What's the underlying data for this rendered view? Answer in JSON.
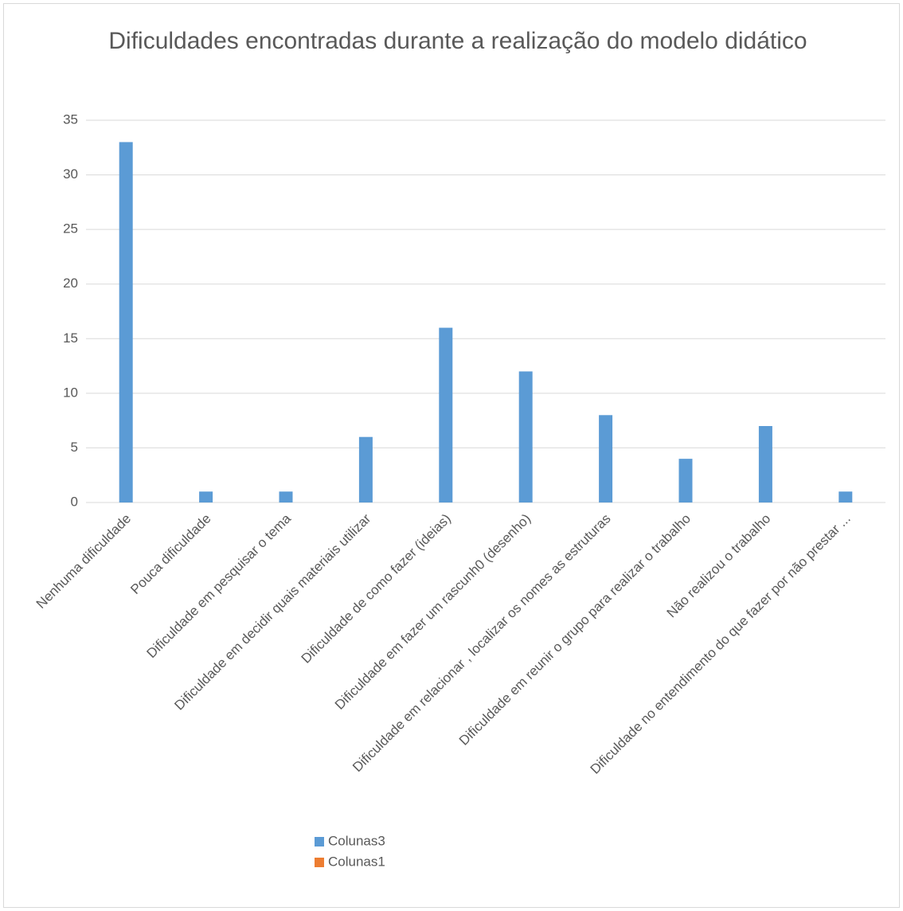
{
  "chart_data": {
    "type": "bar",
    "title": "Dificuldades encontradas durante a realização do modelo didático",
    "categories": [
      "Nenhuma dificuldade",
      "Pouca dificuldade",
      "Dificuldade em pesquisar o tema",
      "Dificuldade em decidir quais materiais utilizar",
      "Dificuldade de como fazer (ideias)",
      "Dificuldade em fazer um rascunh0 (desenho)",
      "Dificuldade em relacionar , localizar os nomes as estruturas",
      "Dificuldade em reunir o grupo para realizar o trabalho",
      "Não realizou o trabalho",
      "Dificuldade no entendimento do que fazer por não prestar ..."
    ],
    "series": [
      {
        "name": "Colunas3",
        "color": "#5b9bd5",
        "values": [
          33,
          1,
          1,
          6,
          16,
          12,
          8,
          4,
          7,
          1
        ]
      },
      {
        "name": "Colunas1",
        "color": "#ed7d31",
        "values": [
          null,
          null,
          null,
          null,
          null,
          null,
          null,
          null,
          null,
          null
        ]
      }
    ],
    "ylim": [
      0,
      35
    ],
    "yticks": [
      0,
      5,
      10,
      15,
      20,
      25,
      30,
      35
    ],
    "grid": true,
    "legend": "bottom"
  }
}
